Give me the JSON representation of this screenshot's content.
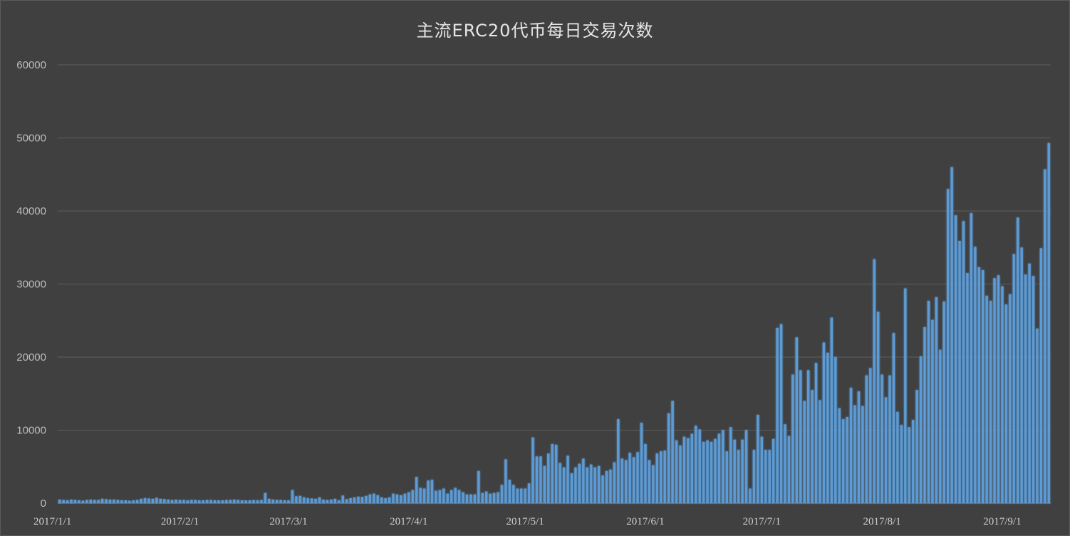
{
  "chart_data": {
    "type": "bar",
    "title": "主流ERC20代币每日交易次数",
    "xlabel": "",
    "ylabel": "",
    "ylim": [
      0,
      60000
    ],
    "y_ticks": [
      "0",
      "10000",
      "20000",
      "30000",
      "40000",
      "50000",
      "60000"
    ],
    "x_tick_labels": [
      "2017/1/1",
      "2017/2/1",
      "2017/3/1",
      "2017/4/1",
      "2017/5/1",
      "2017/6/1",
      "2017/7/1",
      "2017/8/1",
      "2017/9/1"
    ],
    "x_tick_dates": [
      "2017-01-01",
      "2017-02-01",
      "2017-03-01",
      "2017-04-01",
      "2017-05-01",
      "2017-06-01",
      "2017-07-01",
      "2017-08-01",
      "2017-09-01"
    ],
    "grid": true,
    "legend": "none",
    "bar_color": "#5b9bd5",
    "start_date": "2017-01-01",
    "values": [
      500,
      450,
      400,
      500,
      450,
      400,
      350,
      450,
      500,
      450,
      450,
      600,
      550,
      500,
      500,
      450,
      400,
      400,
      350,
      400,
      450,
      600,
      700,
      650,
      600,
      750,
      600,
      550,
      500,
      450,
      500,
      450,
      450,
      400,
      450,
      450,
      400,
      400,
      450,
      450,
      400,
      400,
      400,
      450,
      450,
      500,
      450,
      400,
      400,
      400,
      450,
      400,
      450,
      1400,
      600,
      500,
      450,
      450,
      400,
      400,
      1800,
      950,
      1000,
      800,
      700,
      650,
      600,
      800,
      500,
      450,
      500,
      600,
      400,
      1050,
      550,
      700,
      800,
      900,
      850,
      1000,
      1200,
      1300,
      1100,
      800,
      700,
      800,
      1300,
      1200,
      1100,
      1300,
      1500,
      1800,
      3600,
      2100,
      2000,
      3100,
      3200,
      1700,
      1800,
      2000,
      1300,
      1800,
      2100,
      1800,
      1500,
      1200,
      1200,
      1200,
      4400,
      1400,
      1600,
      1300,
      1400,
      1500,
      2500,
      6000,
      3200,
      2500,
      2000,
      2000,
      2000,
      2700,
      9000,
      6400,
      6400,
      5100,
      6800,
      8100,
      8000,
      5500,
      4900,
      6500,
      4100,
      4900,
      5400,
      6100,
      4900,
      5300,
      4900,
      5100,
      3800,
      4400,
      4600,
      5600,
      11500,
      6100,
      5900,
      6900,
      6300,
      7000,
      11000,
      8100,
      5900,
      5200,
      6800,
      7100,
      7200,
      12300,
      14000,
      8600,
      7900,
      9100,
      8900,
      9500,
      10600,
      10100,
      8400,
      8600,
      8400,
      8800,
      9500,
      10000,
      7100,
      10400,
      8700,
      7300,
      8700,
      10000,
      2000,
      7300,
      12100,
      9100,
      7300,
      7300,
      8800,
      24000,
      24500,
      10800,
      9200,
      17600,
      22700,
      18200,
      14000,
      18200,
      15500,
      19200,
      14100,
      22000,
      20600,
      25400,
      20000,
      13000,
      11500,
      11800,
      15800,
      13400,
      15300,
      13300,
      17500,
      18500,
      33400,
      26200,
      17600,
      14500,
      17500,
      23300,
      12500,
      10700,
      29400,
      10400,
      11400,
      15500,
      20100,
      24100,
      27700,
      25100,
      28200,
      21000,
      27600,
      43000,
      46000,
      39400,
      35900,
      38600,
      31500,
      39700,
      35100,
      32300,
      31900,
      28400,
      27700,
      30800,
      31200,
      29700,
      27200,
      28600,
      34100,
      39100,
      35000,
      31300,
      32800,
      31100,
      23900,
      34900,
      45700,
      49300
    ]
  }
}
